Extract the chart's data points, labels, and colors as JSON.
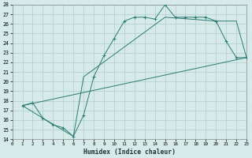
{
  "xlabel": "Humidex (Indice chaleur)",
  "xlim": [
    0,
    23
  ],
  "ylim": [
    14,
    28
  ],
  "xticks": [
    0,
    1,
    2,
    3,
    4,
    5,
    6,
    7,
    8,
    9,
    10,
    11,
    12,
    13,
    14,
    15,
    16,
    17,
    18,
    19,
    20,
    21,
    22,
    23
  ],
  "yticks": [
    14,
    15,
    16,
    17,
    18,
    19,
    20,
    21,
    22,
    23,
    24,
    25,
    26,
    27,
    28
  ],
  "bg_color": "#d6eaea",
  "grid_color": "#b0cccc",
  "line_color": "#2b7b72",
  "line1_x": [
    1,
    2,
    3,
    4,
    5,
    6,
    7,
    8,
    9,
    10,
    11,
    12,
    13,
    14,
    15,
    16,
    17,
    18,
    19,
    20,
    21,
    22,
    23
  ],
  "line1_y": [
    17.5,
    17.8,
    16.2,
    15.5,
    15.2,
    14.3,
    16.5,
    20.5,
    22.7,
    24.5,
    26.3,
    26.7,
    26.7,
    26.5,
    28.0,
    26.7,
    26.7,
    26.7,
    26.7,
    26.3,
    24.2,
    22.5,
    22.5
  ],
  "line2_x": [
    1,
    3,
    6,
    7,
    15,
    20,
    21,
    22,
    23
  ],
  "line2_y": [
    17.5,
    16.2,
    14.3,
    20.5,
    26.7,
    26.3,
    26.3,
    26.3,
    22.5
  ],
  "line3_x": [
    1,
    23
  ],
  "line3_y": [
    17.5,
    22.5
  ]
}
